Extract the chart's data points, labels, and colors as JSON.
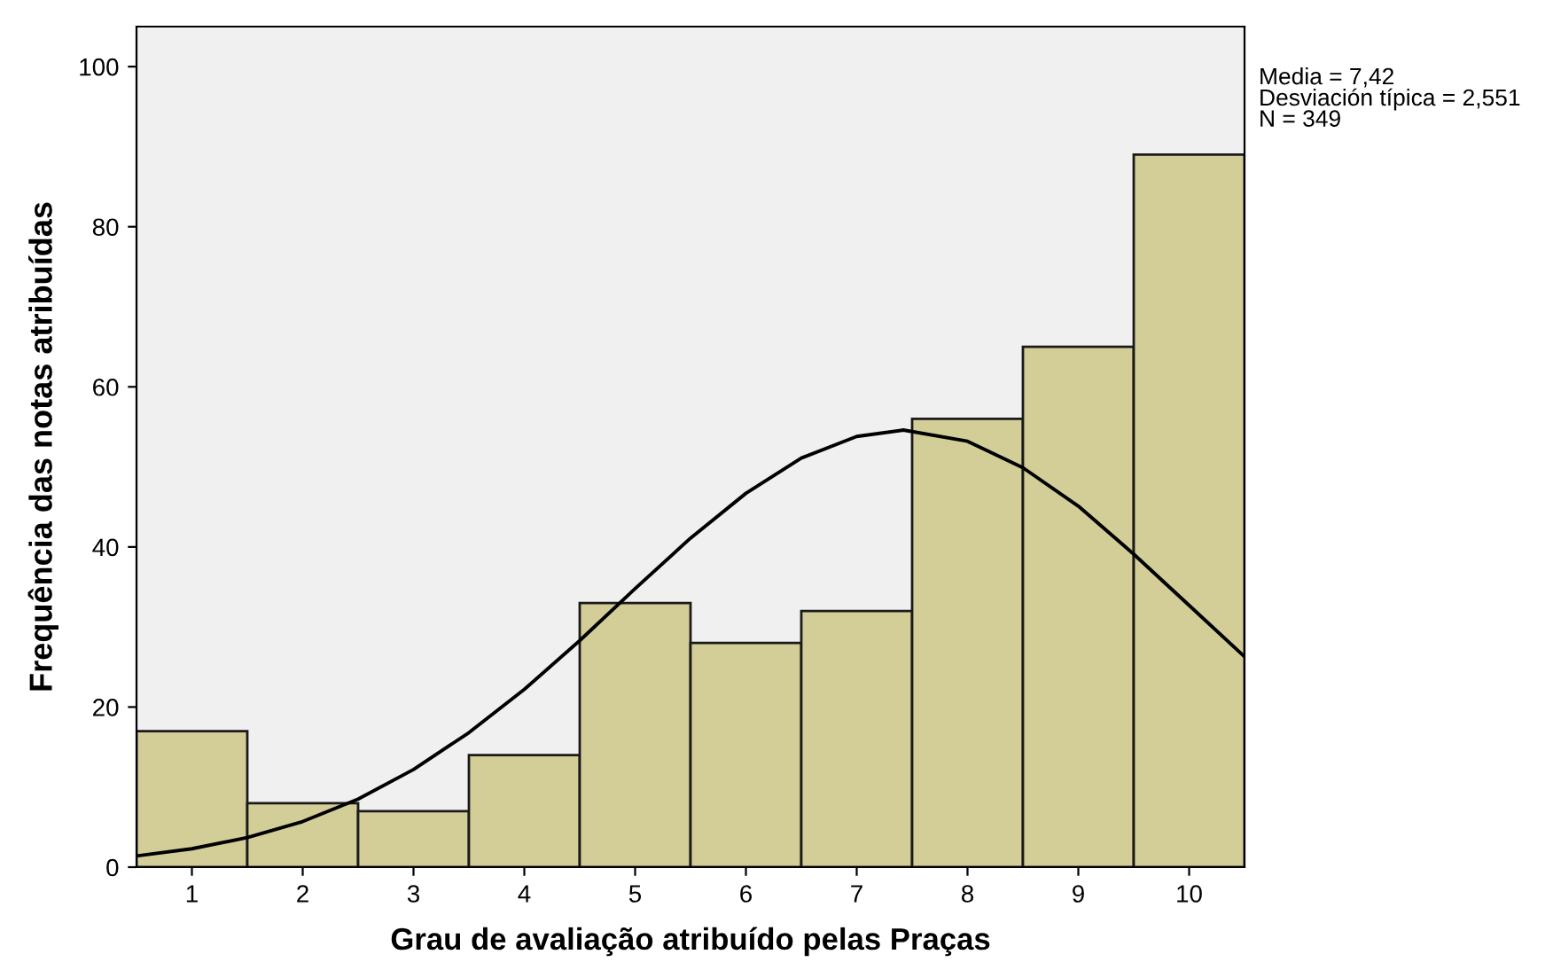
{
  "chart_data": {
    "type": "histogram",
    "xlabel": "Grau de avaliação atribuído pelas Praças",
    "ylabel": "Frequência das notas atribuídas",
    "bins": [
      0.5,
      1.5,
      2.5,
      3.5,
      4.5,
      5.5,
      6.5,
      7.5,
      8.5,
      9.5,
      10.5
    ],
    "values": [
      17,
      8,
      7,
      14,
      33,
      28,
      32,
      56,
      65,
      89
    ],
    "color": "#d3ce97",
    "series": [
      {
        "type": "line",
        "color": "#000000",
        "x": [
          0.5,
          1,
          1.5,
          2,
          2.5,
          3,
          3.5,
          4,
          4.5,
          5,
          5.5,
          6,
          6.5,
          7,
          7.42,
          8,
          8.5,
          9,
          9.5,
          10,
          10.5
        ],
        "values": [
          1.4,
          2.3,
          3.7,
          5.7,
          8.5,
          12.2,
          16.8,
          22.2,
          28.3,
          34.8,
          41.1,
          46.7,
          51.1,
          53.8,
          54.6,
          53.2,
          49.9,
          45.1,
          39.1,
          32.7,
          26.3
        ]
      }
    ],
    "xlim": [
      0.5,
      10.5
    ],
    "xticks": [
      1,
      2,
      3,
      4,
      5,
      6,
      7,
      8,
      9,
      10
    ],
    "ylim": [
      0,
      105
    ],
    "yticks": [
      0,
      20,
      40,
      60,
      80,
      100
    ],
    "grid": false,
    "annotations": [
      "Media = 7,42\nDesviación típica = 2,551\nN = 349"
    ]
  }
}
